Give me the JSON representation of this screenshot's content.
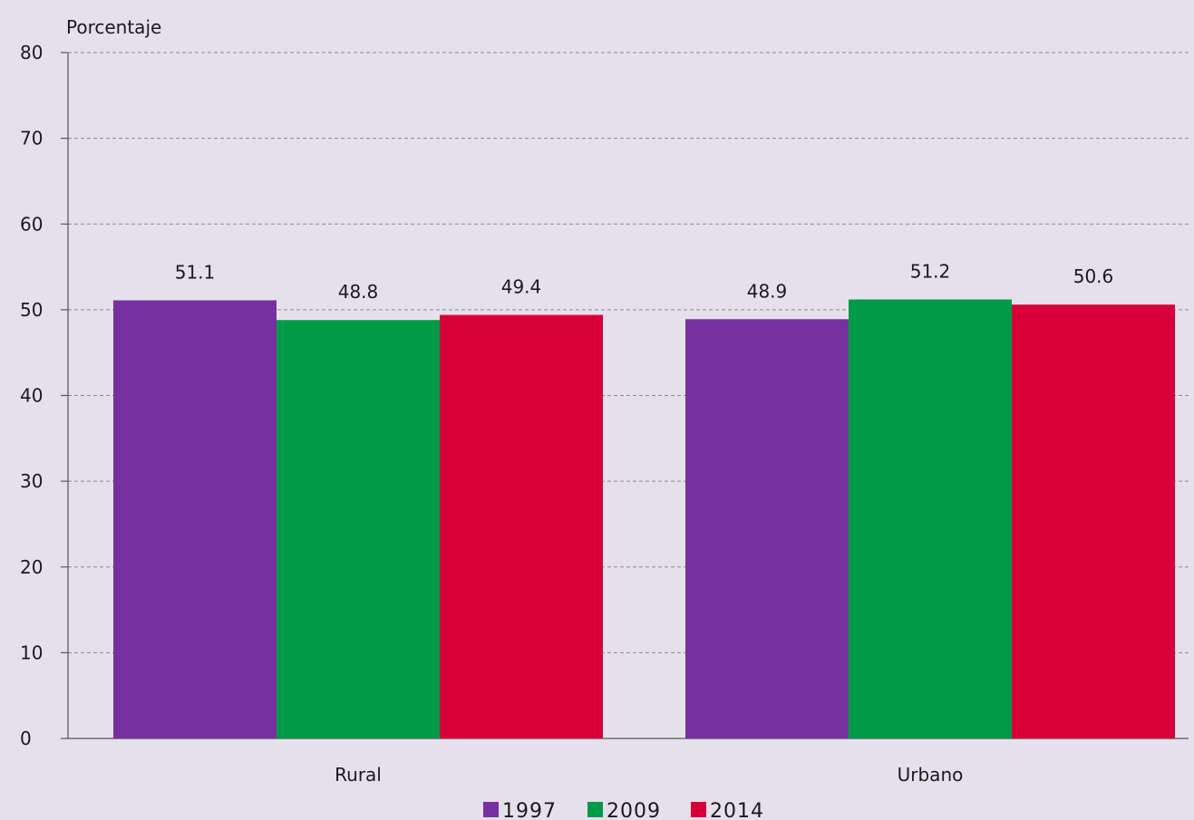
{
  "chart_data": {
    "type": "bar",
    "ylabel": "Porcentaje",
    "ylim": [
      0,
      80
    ],
    "yticks": [
      0,
      10,
      20,
      30,
      40,
      50,
      60,
      70,
      80
    ],
    "grid": true,
    "legend_position": "bottom",
    "categories": [
      "Rural",
      "Urbano"
    ],
    "series": [
      {
        "name": "1997",
        "color": "#7630a0",
        "values": [
          51.1,
          48.9
        ]
      },
      {
        "name": "2009",
        "color": "#009a48",
        "values": [
          48.8,
          51.2
        ]
      },
      {
        "name": "2014",
        "color": "#d80038",
        "values": [
          49.4,
          50.6
        ]
      }
    ]
  }
}
